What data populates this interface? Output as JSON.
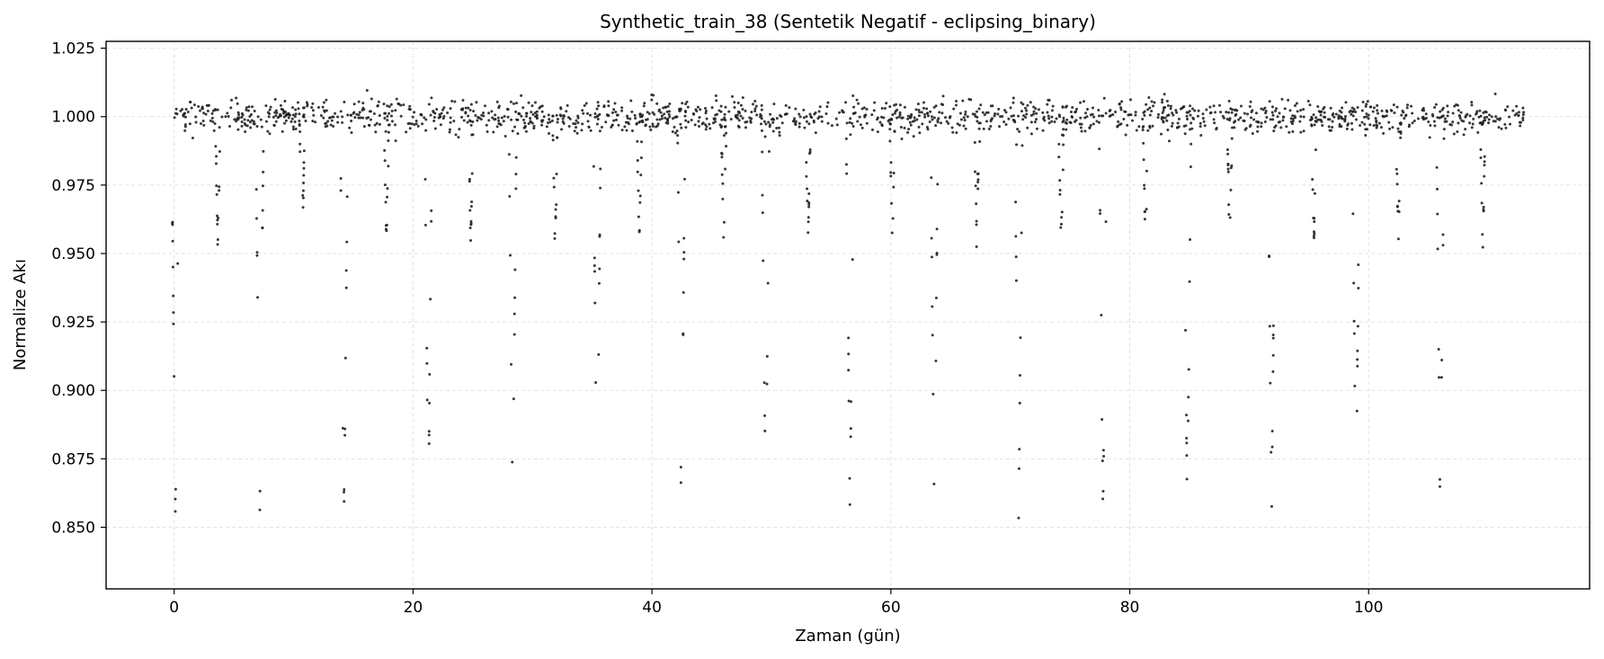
{
  "chart_data": {
    "type": "scatter",
    "title": "Synthetic_train_38 (Sentetik Negatif - eclipsing_binary)",
    "xlabel": "Zaman (gün)",
    "ylabel": "Normalize Akı",
    "xlim": [
      -5.7,
      118.5
    ],
    "ylim": [
      0.8275,
      1.0275
    ],
    "xticks": [
      0,
      20,
      40,
      60,
      80,
      100
    ],
    "xtick_labels": [
      "0",
      "20",
      "40",
      "60",
      "80",
      "100"
    ],
    "yticks": [
      0.85,
      0.875,
      0.9,
      0.925,
      0.95,
      0.975,
      1.0,
      1.025
    ],
    "ytick_labels": [
      "0.850",
      "0.875",
      "0.900",
      "0.925",
      "0.950",
      "0.975",
      "1.000",
      "1.025"
    ],
    "grid": true,
    "legend": "none",
    "marker_color": "#222222",
    "series": [
      {
        "x_range": [
          0.0,
          113.0
        ],
        "baseline_flux": 1.0,
        "baseline_scatter": 0.003,
        "primary_eclipse": {
          "period_days": 7.06,
          "first_epoch_days": 0.1,
          "min_flux": 0.855,
          "duration_days": 0.65
        },
        "secondary_eclipse": {
          "period_days": 7.06,
          "first_epoch_days": 3.65,
          "min_flux": 0.955,
          "duration_days": 0.45
        }
      }
    ]
  }
}
